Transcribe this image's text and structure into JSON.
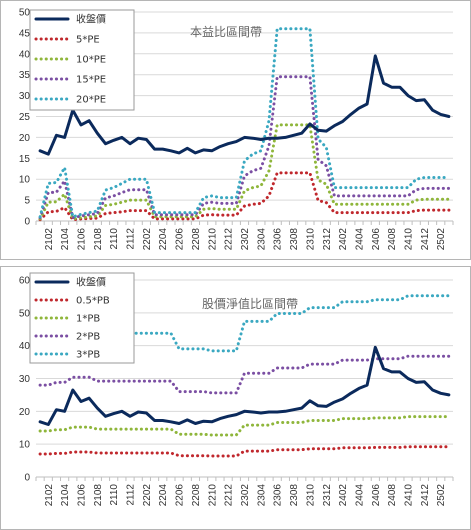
{
  "chart_data": [
    {
      "type": "line",
      "title": "本益比區間帶",
      "xlabel": "",
      "ylabel": "",
      "ylim": [
        0,
        50
      ],
      "yticks": [
        0,
        5,
        10,
        15,
        20,
        25,
        30,
        35,
        40,
        45,
        50
      ],
      "grid": "horizontal",
      "legend": "top-left",
      "x": [
        "2101",
        "2102",
        "2103",
        "2104",
        "2105",
        "2106",
        "2107",
        "2108",
        "2109",
        "2110",
        "2111",
        "2112",
        "2201",
        "2202",
        "2203",
        "2204",
        "2205",
        "2206",
        "2207",
        "2208",
        "2209",
        "2210",
        "2211",
        "2212",
        "2301",
        "2302",
        "2303",
        "2304",
        "2305",
        "2306",
        "2307",
        "2308",
        "2309",
        "2310",
        "2311",
        "2312",
        "2401",
        "2402",
        "2403",
        "2404",
        "2405",
        "2406",
        "2407",
        "2408",
        "2409",
        "2410",
        "2411",
        "2412",
        "2501",
        "2502",
        "2503"
      ],
      "xtick_labels": [
        "2102",
        "2104",
        "2106",
        "2108",
        "2110",
        "2112",
        "2202",
        "2204",
        "2206",
        "2208",
        "2210",
        "2212",
        "2302",
        "2304",
        "2306",
        "2308",
        "2310",
        "2312",
        "2402",
        "2404",
        "2406",
        "2408",
        "2410",
        "2412",
        "2502"
      ],
      "series": [
        {
          "name": "收盤價",
          "color": "#0b2a5c",
          "style": "solid",
          "values": [
            16.8,
            16.0,
            20.5,
            20.0,
            26.5,
            23.0,
            24.0,
            21.0,
            18.5,
            19.3,
            20.0,
            18.5,
            19.8,
            19.5,
            17.2,
            17.2,
            16.8,
            16.3,
            17.4,
            16.3,
            17.0,
            16.8,
            17.8,
            18.5,
            19.0,
            20.0,
            19.8,
            19.5,
            19.8,
            19.8,
            20.0,
            20.5,
            21.0,
            23.2,
            21.7,
            21.5,
            22.8,
            23.8,
            25.5,
            27.0,
            28.0,
            39.5,
            33.0,
            32.0,
            32.0,
            30.0,
            28.8,
            29.0,
            26.5,
            25.5,
            25.0
          ]
        },
        {
          "name": "5*PE",
          "color": "#c0282d",
          "style": "dotted",
          "values": [
            0.3,
            2.2,
            2.3,
            3.2,
            0.3,
            0.5,
            0.6,
            0.7,
            1.8,
            2.0,
            2.2,
            2.5,
            2.5,
            2.5,
            0.5,
            0.5,
            0.5,
            0.5,
            0.5,
            0.5,
            1.4,
            1.5,
            1.4,
            1.4,
            1.4,
            3.6,
            4.0,
            4.2,
            6.0,
            11.5,
            11.5,
            11.5,
            11.5,
            11.5,
            4.9,
            4.4,
            2.0,
            2.0,
            2.0,
            2.0,
            2.0,
            2.0,
            2.0,
            2.0,
            2.0,
            2.0,
            2.5,
            2.6,
            2.6,
            2.6,
            2.6
          ]
        },
        {
          "name": "10*PE",
          "color": "#8fb63b",
          "style": "dotted",
          "values": [
            0.5,
            4.5,
            4.6,
            6.4,
            0.5,
            0.8,
            1.0,
            1.2,
            3.7,
            4.0,
            4.5,
            5.0,
            5.0,
            5.0,
            1.0,
            1.0,
            1.0,
            1.0,
            1.0,
            1.0,
            2.8,
            3.0,
            2.8,
            2.8,
            2.8,
            7.2,
            8.0,
            8.4,
            12.0,
            23.0,
            23.0,
            23.0,
            23.0,
            23.0,
            9.8,
            8.8,
            4.0,
            4.0,
            4.0,
            4.0,
            4.0,
            4.0,
            4.0,
            4.0,
            4.0,
            4.0,
            5.0,
            5.2,
            5.2,
            5.2,
            5.2
          ]
        },
        {
          "name": "15*PE",
          "color": "#7b4fa3",
          "style": "dotted",
          "values": [
            0.8,
            6.8,
            6.9,
            9.6,
            0.8,
            1.2,
            1.5,
            1.8,
            5.5,
            6.0,
            6.8,
            7.5,
            7.5,
            7.5,
            1.5,
            1.5,
            1.5,
            1.5,
            1.5,
            1.5,
            4.2,
            4.5,
            4.2,
            4.2,
            4.2,
            10.8,
            12.0,
            12.6,
            18.0,
            34.5,
            34.5,
            34.5,
            34.5,
            34.5,
            14.7,
            13.2,
            6.0,
            6.0,
            6.0,
            6.0,
            6.0,
            6.0,
            6.0,
            6.0,
            6.0,
            6.0,
            7.5,
            7.8,
            7.8,
            7.8,
            7.8
          ]
        },
        {
          "name": "20*PE",
          "color": "#3aa8c1",
          "style": "dotted",
          "values": [
            1.0,
            9.0,
            9.2,
            12.8,
            1.0,
            1.6,
            2.0,
            2.4,
            7.4,
            8.0,
            9.0,
            10.0,
            10.0,
            10.0,
            2.0,
            2.0,
            2.0,
            2.0,
            2.0,
            2.0,
            5.6,
            6.0,
            5.6,
            5.6,
            5.6,
            14.4,
            16.0,
            16.8,
            24.0,
            46.0,
            46.0,
            46.0,
            46.0,
            46.0,
            19.6,
            17.6,
            8.0,
            8.0,
            8.0,
            8.0,
            8.0,
            8.0,
            8.0,
            8.0,
            8.0,
            8.0,
            10.0,
            10.4,
            10.4,
            10.4,
            10.4
          ]
        }
      ]
    },
    {
      "type": "line",
      "title": "股價淨值比區間帶",
      "xlabel": "",
      "ylabel": "",
      "ylim": [
        0,
        60
      ],
      "yticks": [
        0,
        10,
        20,
        30,
        40,
        50,
        60
      ],
      "grid": "horizontal",
      "legend": "top-left",
      "x": [
        "2101",
        "2102",
        "2103",
        "2104",
        "2105",
        "2106",
        "2107",
        "2108",
        "2109",
        "2110",
        "2111",
        "2112",
        "2201",
        "2202",
        "2203",
        "2204",
        "2205",
        "2206",
        "2207",
        "2208",
        "2209",
        "2210",
        "2211",
        "2212",
        "2301",
        "2302",
        "2303",
        "2304",
        "2305",
        "2306",
        "2307",
        "2308",
        "2309",
        "2310",
        "2311",
        "2312",
        "2401",
        "2402",
        "2403",
        "2404",
        "2405",
        "2406",
        "2407",
        "2408",
        "2409",
        "2410",
        "2411",
        "2412",
        "2501",
        "2502",
        "2503"
      ],
      "xtick_labels": [
        "2102",
        "2104",
        "2106",
        "2108",
        "2110",
        "2112",
        "2202",
        "2204",
        "2206",
        "2208",
        "2210",
        "2212",
        "2302",
        "2304",
        "2306",
        "2308",
        "2310",
        "2312",
        "2402",
        "2404",
        "2406",
        "2408",
        "2410",
        "2412",
        "2502"
      ],
      "series": [
        {
          "name": "收盤價",
          "color": "#0b2a5c",
          "style": "solid",
          "values": [
            16.8,
            16.0,
            20.5,
            20.0,
            26.5,
            23.0,
            24.0,
            21.0,
            18.5,
            19.3,
            20.0,
            18.5,
            19.8,
            19.5,
            17.2,
            17.2,
            16.8,
            16.3,
            17.4,
            16.3,
            17.0,
            16.8,
            17.8,
            18.5,
            19.0,
            20.0,
            19.8,
            19.5,
            19.8,
            19.8,
            20.0,
            20.5,
            21.0,
            23.2,
            21.7,
            21.5,
            22.8,
            23.8,
            25.5,
            27.0,
            28.0,
            39.5,
            33.0,
            32.0,
            32.0,
            30.0,
            28.8,
            29.0,
            26.5,
            25.5,
            25.0
          ]
        },
        {
          "name": "0.5*PB",
          "color": "#c0282d",
          "style": "dotted",
          "values": [
            7.0,
            7.0,
            7.2,
            7.2,
            7.6,
            7.6,
            7.6,
            7.3,
            7.3,
            7.3,
            7.3,
            7.3,
            7.3,
            7.3,
            7.3,
            7.3,
            7.3,
            6.5,
            6.5,
            6.5,
            6.5,
            6.4,
            6.4,
            6.4,
            6.4,
            7.9,
            7.9,
            7.9,
            7.9,
            8.3,
            8.3,
            8.3,
            8.3,
            8.6,
            8.6,
            8.6,
            8.6,
            8.9,
            8.9,
            8.9,
            8.9,
            9.0,
            9.0,
            9.0,
            9.0,
            9.2,
            9.2,
            9.2,
            9.2,
            9.2,
            9.2
          ]
        },
        {
          "name": "1*PB",
          "color": "#8fb63b",
          "style": "dotted",
          "values": [
            14.0,
            14.0,
            14.4,
            14.4,
            15.2,
            15.2,
            15.2,
            14.6,
            14.6,
            14.6,
            14.6,
            14.6,
            14.6,
            14.6,
            14.6,
            14.6,
            14.6,
            13.0,
            13.0,
            13.0,
            13.0,
            12.8,
            12.8,
            12.8,
            12.8,
            15.8,
            15.8,
            15.8,
            15.8,
            16.6,
            16.6,
            16.6,
            16.6,
            17.2,
            17.2,
            17.2,
            17.2,
            17.8,
            17.8,
            17.8,
            17.8,
            18.0,
            18.0,
            18.0,
            18.0,
            18.4,
            18.4,
            18.4,
            18.4,
            18.4,
            18.4
          ]
        },
        {
          "name": "2*PB",
          "color": "#7b4fa3",
          "style": "dotted",
          "values": [
            28.0,
            28.0,
            28.8,
            28.8,
            30.4,
            30.4,
            30.4,
            29.2,
            29.2,
            29.2,
            29.2,
            29.2,
            29.2,
            29.2,
            29.2,
            29.2,
            29.2,
            26.0,
            26.0,
            26.0,
            26.0,
            25.6,
            25.6,
            25.6,
            25.6,
            31.6,
            31.6,
            31.6,
            31.6,
            33.2,
            33.2,
            33.2,
            33.2,
            34.4,
            34.4,
            34.4,
            34.4,
            35.6,
            35.6,
            35.6,
            35.6,
            36.0,
            36.0,
            36.0,
            36.0,
            36.8,
            36.8,
            36.8,
            36.8,
            36.8,
            36.8
          ]
        },
        {
          "name": "3*PB",
          "color": "#3aa8c1",
          "style": "dotted",
          "values": [
            42.0,
            42.0,
            43.2,
            43.2,
            45.6,
            45.6,
            45.6,
            43.8,
            43.8,
            43.8,
            43.8,
            43.8,
            43.8,
            43.8,
            43.8,
            43.8,
            43.8,
            39.0,
            39.0,
            39.0,
            39.0,
            38.4,
            38.4,
            38.4,
            38.4,
            47.4,
            47.4,
            47.4,
            47.4,
            49.8,
            49.8,
            49.8,
            49.8,
            51.6,
            51.6,
            51.6,
            51.6,
            53.4,
            53.4,
            53.4,
            53.4,
            54.0,
            54.0,
            54.0,
            54.0,
            55.2,
            55.2,
            55.2,
            55.2,
            55.2,
            55.2
          ]
        }
      ]
    }
  ]
}
